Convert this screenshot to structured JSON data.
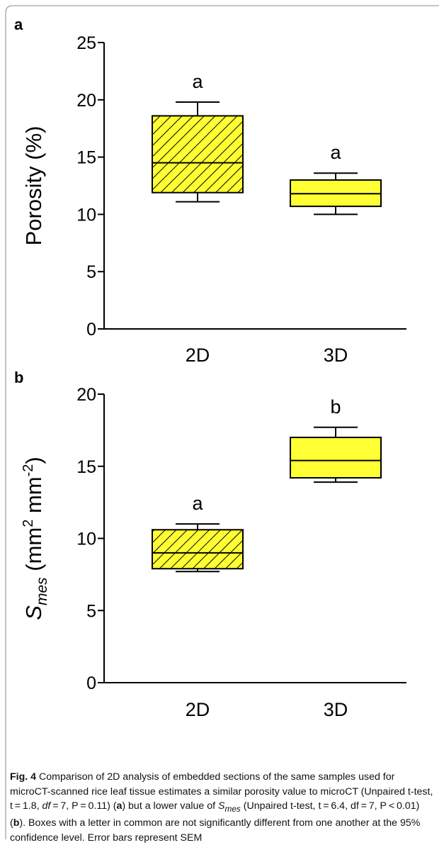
{
  "colors": {
    "box_fill": "#ffff33",
    "hatch_stroke": "#000000",
    "frame": "#8a8a8a"
  },
  "chart_data": [
    {
      "panel": "a",
      "type": "box",
      "categories": [
        "2D",
        "3D"
      ],
      "ylabel": "Porosity (%)",
      "ylim": [
        0,
        25
      ],
      "yticks": [
        0,
        5,
        10,
        15,
        20,
        25
      ],
      "boxes": [
        {
          "category": "2D",
          "whisker_low": 11.1,
          "q1": 11.9,
          "median": 14.5,
          "q3": 18.6,
          "whisker_high": 19.8,
          "significance": "a",
          "fill": "hatched"
        },
        {
          "category": "3D",
          "whisker_low": 10.0,
          "q1": 10.7,
          "median": 11.8,
          "q3": 13.0,
          "whisker_high": 13.6,
          "significance": "a",
          "fill": "solid"
        }
      ]
    },
    {
      "panel": "b",
      "type": "box",
      "categories": [
        "2D",
        "3D"
      ],
      "ylabel": {
        "main": "S",
        "sub": "mes",
        "rest": " (mm",
        "sup1": "2",
        "mid": " mm",
        "sup2": "-2",
        "end": ")"
      },
      "ylim": [
        0,
        20
      ],
      "yticks": [
        0,
        5,
        10,
        15,
        20
      ],
      "boxes": [
        {
          "category": "2D",
          "whisker_low": 7.7,
          "q1": 7.9,
          "median": 9.0,
          "q3": 10.6,
          "whisker_high": 11.0,
          "significance": "a",
          "fill": "hatched"
        },
        {
          "category": "3D",
          "whisker_low": 13.9,
          "q1": 14.2,
          "median": 15.4,
          "q3": 17.0,
          "whisker_high": 17.7,
          "significance": "b",
          "fill": "solid"
        }
      ]
    }
  ],
  "caption": {
    "fig_label": "Fig. 4",
    "p1": "  Comparison of 2D analysis of embedded sections of the same samples used for microCT-scanned rice leaf tissue estimates a similar porosity value to microCT (Unpaired t-test, t = 1.8, ",
    "df_italic": "df",
    "p2": " = 7, P = 0.11) (",
    "ref_a": "a",
    "p3": ") but a lower value of ",
    "s_main": "S",
    "s_sub": "mes",
    "p4": " (Unpaired t-test, t = 6.4, df = 7, P < 0.01) (",
    "ref_b": "b",
    "p5": "). Boxes with a letter in common are not significantly different from one another at the 95% confidence level. Error bars represent SEM"
  }
}
